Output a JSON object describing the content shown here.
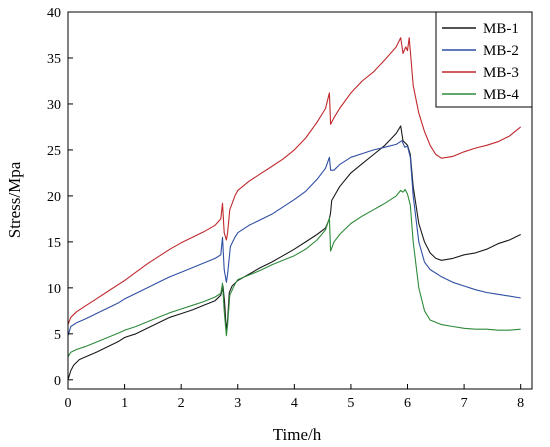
{
  "chart_data": {
    "type": "line",
    "xlabel": "Time/h",
    "ylabel": "Stress/Mpa",
    "xlim": [
      0,
      8.2
    ],
    "ylim": [
      -1,
      40
    ],
    "xticks": [
      "0",
      "1",
      "2",
      "3",
      "4",
      "5",
      "6",
      "7",
      "8"
    ],
    "yticks": [
      "0",
      "5",
      "10",
      "15",
      "20",
      "25",
      "30",
      "35",
      "40"
    ],
    "legend_position": "top-right",
    "series": [
      {
        "name": "MB-1",
        "color": "#1a1a1a",
        "points": [
          [
            0,
            0
          ],
          [
            0.05,
            1
          ],
          [
            0.1,
            1.6
          ],
          [
            0.2,
            2.2
          ],
          [
            0.35,
            2.6
          ],
          [
            0.5,
            3
          ],
          [
            0.7,
            3.6
          ],
          [
            0.9,
            4.2
          ],
          [
            1,
            4.6
          ],
          [
            1.2,
            5
          ],
          [
            1.4,
            5.6
          ],
          [
            1.6,
            6.2
          ],
          [
            1.8,
            6.8
          ],
          [
            2,
            7.2
          ],
          [
            2.2,
            7.6
          ],
          [
            2.4,
            8.1
          ],
          [
            2.6,
            8.6
          ],
          [
            2.7,
            9.2
          ],
          [
            2.74,
            10.2
          ],
          [
            2.77,
            8.3
          ],
          [
            2.8,
            5.2
          ],
          [
            2.82,
            6.5
          ],
          [
            2.85,
            9.5
          ],
          [
            2.9,
            10.2
          ],
          [
            3,
            10.8
          ],
          [
            3.2,
            11.5
          ],
          [
            3.4,
            12.2
          ],
          [
            3.6,
            12.8
          ],
          [
            3.8,
            13.5
          ],
          [
            4,
            14.2
          ],
          [
            4.2,
            15
          ],
          [
            4.4,
            15.8
          ],
          [
            4.55,
            16.5
          ],
          [
            4.62,
            17.5
          ],
          [
            4.64,
            18.2
          ],
          [
            4.66,
            19.5
          ],
          [
            4.8,
            21
          ],
          [
            5,
            22.5
          ],
          [
            5.2,
            23.5
          ],
          [
            5.4,
            24.5
          ],
          [
            5.6,
            25.5
          ],
          [
            5.8,
            26.8
          ],
          [
            5.88,
            27.6
          ],
          [
            5.92,
            26
          ],
          [
            6,
            25.5
          ],
          [
            6.05,
            24.5
          ],
          [
            6.1,
            21
          ],
          [
            6.2,
            17
          ],
          [
            6.3,
            15
          ],
          [
            6.4,
            13.8
          ],
          [
            6.5,
            13.2
          ],
          [
            6.6,
            13
          ],
          [
            6.8,
            13.2
          ],
          [
            7,
            13.6
          ],
          [
            7.2,
            13.8
          ],
          [
            7.4,
            14.2
          ],
          [
            7.6,
            14.8
          ],
          [
            7.8,
            15.2
          ],
          [
            8,
            15.8
          ]
        ]
      },
      {
        "name": "MB-2",
        "color": "#2f4fa3",
        "points": [
          [
            0,
            4.8
          ],
          [
            0.05,
            5.8
          ],
          [
            0.15,
            6.2
          ],
          [
            0.3,
            6.6
          ],
          [
            0.5,
            7.2
          ],
          [
            0.7,
            7.8
          ],
          [
            0.9,
            8.4
          ],
          [
            1,
            8.8
          ],
          [
            1.2,
            9.4
          ],
          [
            1.4,
            10
          ],
          [
            1.6,
            10.6
          ],
          [
            1.8,
            11.2
          ],
          [
            2,
            11.7
          ],
          [
            2.2,
            12.2
          ],
          [
            2.4,
            12.7
          ],
          [
            2.6,
            13.2
          ],
          [
            2.7,
            13.6
          ],
          [
            2.73,
            15.5
          ],
          [
            2.76,
            12
          ],
          [
            2.8,
            10.6
          ],
          [
            2.82,
            11.5
          ],
          [
            2.87,
            14.5
          ],
          [
            2.95,
            15.5
          ],
          [
            3,
            16
          ],
          [
            3.2,
            16.8
          ],
          [
            3.4,
            17.4
          ],
          [
            3.6,
            18
          ],
          [
            3.8,
            18.8
          ],
          [
            4,
            19.6
          ],
          [
            4.2,
            20.5
          ],
          [
            4.4,
            21.8
          ],
          [
            4.55,
            23
          ],
          [
            4.62,
            24.2
          ],
          [
            4.64,
            22.8
          ],
          [
            4.7,
            22.8
          ],
          [
            4.8,
            23.4
          ],
          [
            5,
            24.2
          ],
          [
            5.2,
            24.6
          ],
          [
            5.4,
            25
          ],
          [
            5.6,
            25.3
          ],
          [
            5.8,
            25.6
          ],
          [
            5.9,
            26
          ],
          [
            5.95,
            25.3
          ],
          [
            6,
            25.4
          ],
          [
            6.05,
            24.2
          ],
          [
            6.1,
            20
          ],
          [
            6.2,
            15
          ],
          [
            6.3,
            12.8
          ],
          [
            6.4,
            12
          ],
          [
            6.6,
            11.2
          ],
          [
            6.8,
            10.6
          ],
          [
            7,
            10.2
          ],
          [
            7.2,
            9.8
          ],
          [
            7.4,
            9.5
          ],
          [
            7.6,
            9.3
          ],
          [
            7.8,
            9.1
          ],
          [
            8,
            8.9
          ]
        ]
      },
      {
        "name": "MB-3",
        "color": "#c0282d",
        "points": [
          [
            0,
            6
          ],
          [
            0.05,
            6.8
          ],
          [
            0.15,
            7.4
          ],
          [
            0.3,
            8
          ],
          [
            0.5,
            8.8
          ],
          [
            0.7,
            9.6
          ],
          [
            0.9,
            10.4
          ],
          [
            1,
            10.8
          ],
          [
            1.2,
            11.7
          ],
          [
            1.4,
            12.6
          ],
          [
            1.6,
            13.4
          ],
          [
            1.8,
            14.2
          ],
          [
            2,
            14.9
          ],
          [
            2.2,
            15.5
          ],
          [
            2.4,
            16.1
          ],
          [
            2.6,
            16.8
          ],
          [
            2.7,
            17.5
          ],
          [
            2.73,
            19.2
          ],
          [
            2.76,
            16
          ],
          [
            2.8,
            15.2
          ],
          [
            2.82,
            16
          ],
          [
            2.86,
            18.5
          ],
          [
            2.95,
            20
          ],
          [
            3,
            20.6
          ],
          [
            3.2,
            21.6
          ],
          [
            3.4,
            22.4
          ],
          [
            3.6,
            23.2
          ],
          [
            3.8,
            24
          ],
          [
            4,
            25
          ],
          [
            4.2,
            26.3
          ],
          [
            4.4,
            28
          ],
          [
            4.55,
            29.5
          ],
          [
            4.62,
            31.2
          ],
          [
            4.64,
            27.8
          ],
          [
            4.7,
            28.5
          ],
          [
            4.8,
            29.5
          ],
          [
            5,
            31.2
          ],
          [
            5.2,
            32.5
          ],
          [
            5.4,
            33.5
          ],
          [
            5.6,
            34.8
          ],
          [
            5.8,
            36.2
          ],
          [
            5.88,
            37.2
          ],
          [
            5.92,
            35.5
          ],
          [
            5.97,
            36.2
          ],
          [
            6,
            35.8
          ],
          [
            6.03,
            37.2
          ],
          [
            6.06,
            35
          ],
          [
            6.1,
            32
          ],
          [
            6.2,
            29
          ],
          [
            6.3,
            27
          ],
          [
            6.4,
            25.5
          ],
          [
            6.5,
            24.5
          ],
          [
            6.6,
            24.1
          ],
          [
            6.8,
            24.3
          ],
          [
            7,
            24.8
          ],
          [
            7.2,
            25.2
          ],
          [
            7.4,
            25.5
          ],
          [
            7.6,
            25.9
          ],
          [
            7.8,
            26.5
          ],
          [
            8,
            27.5
          ]
        ]
      },
      {
        "name": "MB-4",
        "color": "#2f8a3a",
        "points": [
          [
            0,
            2.5
          ],
          [
            0.05,
            3
          ],
          [
            0.15,
            3.3
          ],
          [
            0.3,
            3.6
          ],
          [
            0.5,
            4.1
          ],
          [
            0.7,
            4.6
          ],
          [
            0.9,
            5.1
          ],
          [
            1,
            5.4
          ],
          [
            1.2,
            5.8
          ],
          [
            1.4,
            6.3
          ],
          [
            1.6,
            6.8
          ],
          [
            1.8,
            7.3
          ],
          [
            2,
            7.7
          ],
          [
            2.2,
            8.1
          ],
          [
            2.4,
            8.5
          ],
          [
            2.6,
            9
          ],
          [
            2.7,
            9.4
          ],
          [
            2.73,
            10.5
          ],
          [
            2.76,
            7.5
          ],
          [
            2.8,
            4.8
          ],
          [
            2.82,
            6
          ],
          [
            2.86,
            9.2
          ],
          [
            2.95,
            10.4
          ],
          [
            3,
            10.9
          ],
          [
            3.2,
            11.4
          ],
          [
            3.4,
            11.9
          ],
          [
            3.6,
            12.5
          ],
          [
            3.8,
            13
          ],
          [
            4,
            13.5
          ],
          [
            4.2,
            14.2
          ],
          [
            4.4,
            15.2
          ],
          [
            4.55,
            16.3
          ],
          [
            4.62,
            17.6
          ],
          [
            4.64,
            14
          ],
          [
            4.7,
            15
          ],
          [
            4.8,
            15.8
          ],
          [
            5,
            17
          ],
          [
            5.2,
            17.8
          ],
          [
            5.4,
            18.5
          ],
          [
            5.6,
            19.2
          ],
          [
            5.8,
            20
          ],
          [
            5.88,
            20.6
          ],
          [
            5.92,
            20.4
          ],
          [
            5.96,
            20.7
          ],
          [
            6,
            20.2
          ],
          [
            6.05,
            19
          ],
          [
            6.1,
            15
          ],
          [
            6.2,
            10
          ],
          [
            6.3,
            7.5
          ],
          [
            6.4,
            6.5
          ],
          [
            6.6,
            6
          ],
          [
            6.8,
            5.8
          ],
          [
            7,
            5.6
          ],
          [
            7.2,
            5.5
          ],
          [
            7.4,
            5.5
          ],
          [
            7.6,
            5.4
          ],
          [
            7.8,
            5.4
          ],
          [
            8,
            5.5
          ]
        ]
      }
    ]
  }
}
